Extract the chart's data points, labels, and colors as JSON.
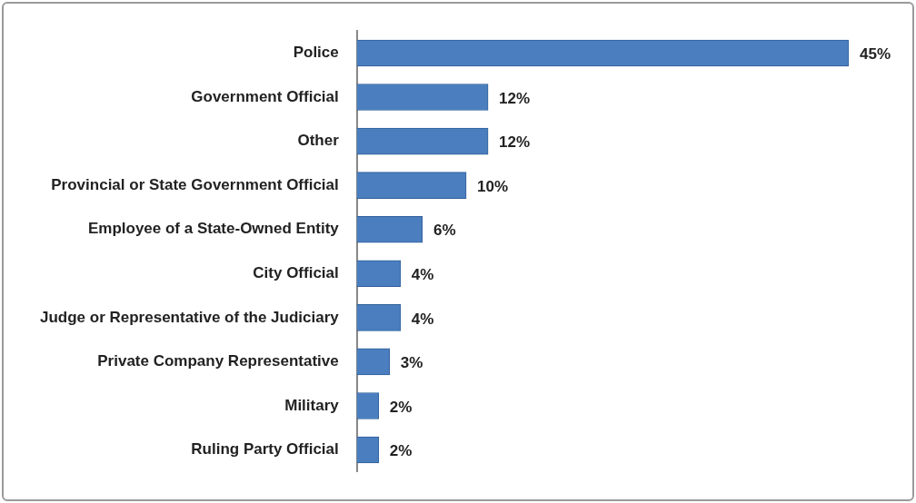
{
  "chart_data": {
    "type": "bar",
    "orientation": "horizontal",
    "categories": [
      "Police",
      "Government Official",
      "Other",
      "Provincial or State Government Official",
      "Employee of a State-Owned Entity",
      "City Official",
      "Judge or Representative of the Judiciary",
      "Private Company Representative",
      "Military",
      "Ruling Party Official"
    ],
    "values": [
      45,
      12,
      12,
      10,
      6,
      4,
      4,
      3,
      2,
      2
    ],
    "value_labels": [
      "45%",
      "12%",
      "12%",
      "10%",
      "6%",
      "4%",
      "4%",
      "3%",
      "2%",
      "2%"
    ],
    "color": "#4a7ebf",
    "grid": false,
    "legend": false,
    "tick_labels": "y"
  }
}
